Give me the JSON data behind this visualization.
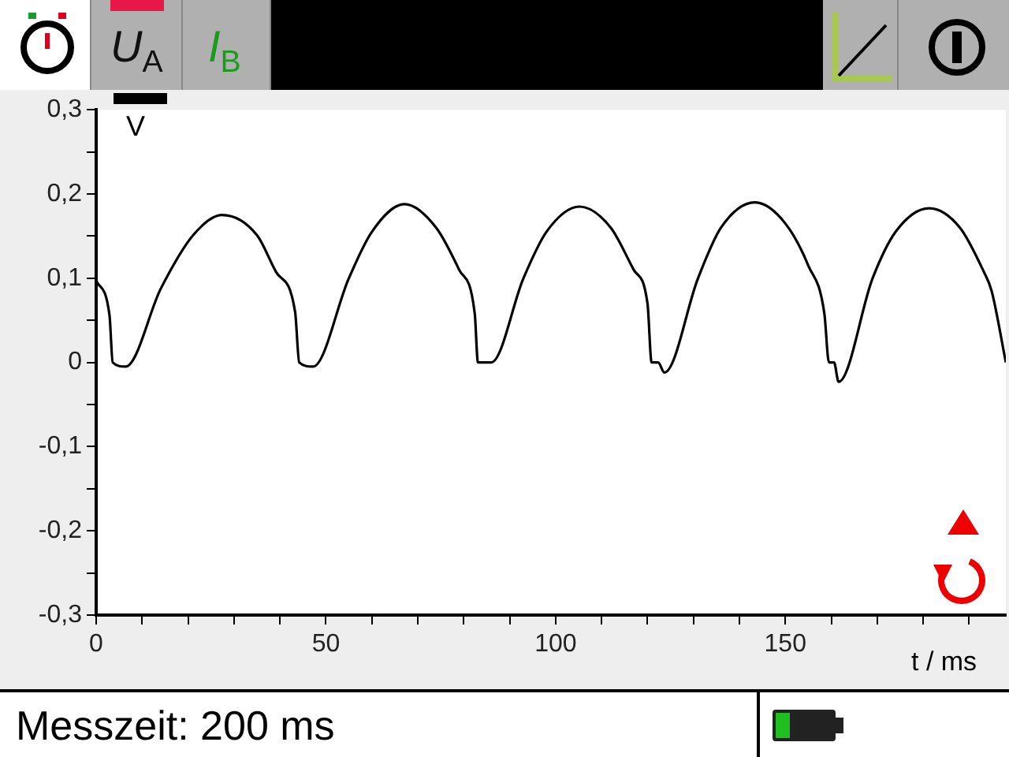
{
  "chart_data": {
    "type": "line",
    "xlabel": "t / ms",
    "ylabel": "V",
    "annotations": [
      "U$_{A}$",
      "I$_{B}$",
      "Messzeit: 200 ms"
    ],
    "marker": "none",
    "line_style": "solid",
    "color": "#000000",
    "xlim": [
      0,
      198
    ],
    "ylim": [
      -0.3,
      0.3
    ],
    "xticks": [
      0,
      {
        "value": 10,
        "label": null
      },
      {
        "value": 20,
        "label": null
      },
      {
        "value": 30,
        "label": null
      },
      {
        "value": 40,
        "label": null
      },
      50,
      {
        "value": 60,
        "label": null
      },
      {
        "value": 70,
        "label": null
      },
      {
        "value": 80,
        "label": null
      },
      {
        "value": 90,
        "label": null
      },
      100,
      {
        "value": 110,
        "label": null
      },
      {
        "value": 120,
        "label": null
      },
      {
        "value": 130,
        "label": null
      },
      {
        "value": 140,
        "label": null
      },
      150,
      {
        "value": 160,
        "label": null
      },
      {
        "value": 170,
        "label": null
      },
      {
        "value": 180,
        "label": null
      },
      {
        "value": 190,
        "label": null
      }
    ],
    "yticks": [
      {
        "value": -0.3,
        "label": "-0,3"
      },
      {
        "value": -0.25,
        "label": null
      },
      {
        "value": -0.2,
        "label": "-0,2"
      },
      {
        "value": -0.15,
        "label": null
      },
      {
        "value": -0.1,
        "label": "-0,1"
      },
      {
        "value": -0.05,
        "label": null
      },
      0,
      {
        "value": 0.05,
        "label": null
      },
      {
        "value": 0.1,
        "label": "0,1"
      },
      {
        "value": 0.15,
        "label": null
      },
      {
        "value": 0.2,
        "label": "0,2"
      },
      {
        "value": 0.25,
        "label": null
      },
      {
        "value": 0.3,
        "label": "0,3"
      }
    ],
    "x": [
      0,
      2.9,
      3.6,
      6.4,
      14.1,
      21.1,
      27.4,
      35,
      39.2,
      43.3,
      44.2,
      47.2,
      55,
      60,
      67.1,
      74,
      79,
      82.4,
      83.1,
      86,
      93,
      98,
      105.2,
      112,
      117,
      120,
      120.9,
      122.3,
      123.7,
      131,
      136,
      143.4,
      150,
      155,
      158.5,
      159.5,
      160.6,
      161.6,
      169,
      174,
      181.3,
      188,
      193,
      194.9,
      198
    ],
    "values": [
      0.097,
      0.056,
      0,
      -0.005,
      0.088,
      0.151,
      0.175,
      0.151,
      0.107,
      0.06,
      0,
      -0.005,
      0.1,
      0.155,
      0.188,
      0.16,
      0.11,
      0.058,
      0,
      0,
      0.1,
      0.155,
      0.185,
      0.16,
      0.11,
      0.07,
      0,
      0,
      -0.012,
      0.1,
      0.16,
      0.19,
      0.165,
      0.115,
      0.058,
      0,
      0,
      -0.023,
      0.1,
      0.155,
      0.183,
      0.16,
      0.11,
      0.085,
      0
    ]
  }
}
